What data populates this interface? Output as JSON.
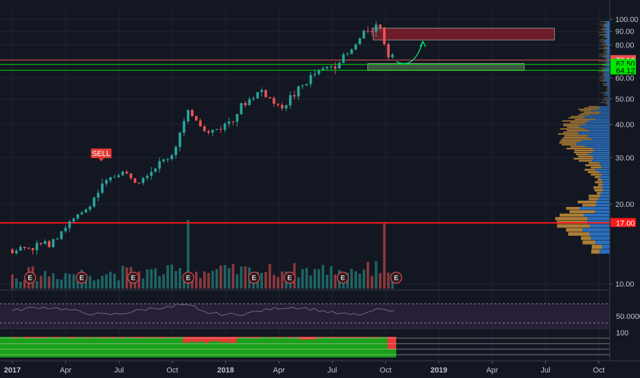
{
  "chart_data": {
    "type": "candlestick",
    "price_axis": {
      "ticks": [
        10,
        20,
        30,
        40,
        50,
        60,
        70,
        80,
        90,
        100
      ],
      "labels": [
        "10.00",
        "20.00",
        "30.00",
        "40.00",
        "50.00",
        "60.00",
        "70.00",
        "80.00",
        "90.00",
        "100.00"
      ],
      "range": [
        9,
        102
      ]
    },
    "time_axis": {
      "labels": [
        {
          "text": "2017",
          "t": 0,
          "bold": true
        },
        {
          "text": "Apr",
          "t": 3,
          "bold": false
        },
        {
          "text": "Jul",
          "t": 6,
          "bold": false
        },
        {
          "text": "Oct",
          "t": 9,
          "bold": false
        },
        {
          "text": "2018",
          "t": 12,
          "bold": true
        },
        {
          "text": "Apr",
          "t": 15,
          "bold": false
        },
        {
          "text": "Jul",
          "t": 18,
          "bold": false
        },
        {
          "text": "Oct",
          "t": 21,
          "bold": false
        },
        {
          "text": "2019",
          "t": 24,
          "bold": true
        },
        {
          "text": "Apr",
          "t": 27,
          "bold": false
        },
        {
          "text": "Jul",
          "t": 30,
          "bold": false
        },
        {
          "text": "Oct",
          "t": 33,
          "bold": false
        }
      ],
      "range_months": [
        -0.9,
        34.1
      ]
    },
    "price_path": [
      [
        0,
        13.5
      ],
      [
        1,
        13.8
      ],
      [
        2,
        14.2
      ],
      [
        3,
        16.5
      ],
      [
        4,
        18.5
      ],
      [
        5,
        23
      ],
      [
        6,
        26.5
      ],
      [
        7,
        25
      ],
      [
        8,
        27.5
      ],
      [
        9,
        31
      ],
      [
        10,
        45
      ],
      [
        11,
        37
      ],
      [
        12,
        40
      ],
      [
        13,
        47.5
      ],
      [
        14,
        54
      ],
      [
        15,
        46
      ],
      [
        16,
        53
      ],
      [
        17,
        62
      ],
      [
        18,
        67
      ],
      [
        19,
        74.5
      ],
      [
        20,
        92
      ],
      [
        20.75,
        95
      ],
      [
        21,
        77
      ],
      [
        21.4,
        73.5
      ],
      [
        21.6,
        70.2
      ]
    ],
    "volume_spikes": [
      [
        9.9,
        1.0
      ],
      [
        21,
        0.95
      ],
      [
        20.5,
        0.4
      ]
    ],
    "horizontal_levels": [
      {
        "value": 70.16,
        "label": "70.16",
        "color": "#ef5350"
      },
      {
        "value": 67.5,
        "label": "67.50",
        "color": "#00e600"
      },
      {
        "value": 64.12,
        "label": "64.12",
        "color": "#00e600"
      },
      {
        "value": 17.0,
        "label": "17.00",
        "color": "#ff1a1a"
      }
    ],
    "zones": [
      {
        "kind": "resistance",
        "t0": 20.3,
        "t1": 30.5,
        "p0": 83.5,
        "p1": 92.5,
        "color": "#8b1e2b"
      },
      {
        "kind": "support",
        "t0": 20.0,
        "t1": 28.8,
        "p0": 64.0,
        "p1": 68.0,
        "color": "#4a6b4a"
      }
    ],
    "sell_marker": {
      "label": "SELL",
      "t": 5.0,
      "price": 29.5
    },
    "earnings_markers": {
      "label": "E",
      "t": [
        1.0,
        3.9,
        6.8,
        9.9,
        13.6,
        15.6,
        18.6,
        21.6
      ]
    },
    "volume_profile": {
      "range": [
        13,
        47
      ]
    },
    "rsi_panel": {
      "labels": [
        "50.0000"
      ],
      "line_value": 70
    },
    "momentum_panel": {
      "labels": [
        "100"
      ]
    }
  }
}
